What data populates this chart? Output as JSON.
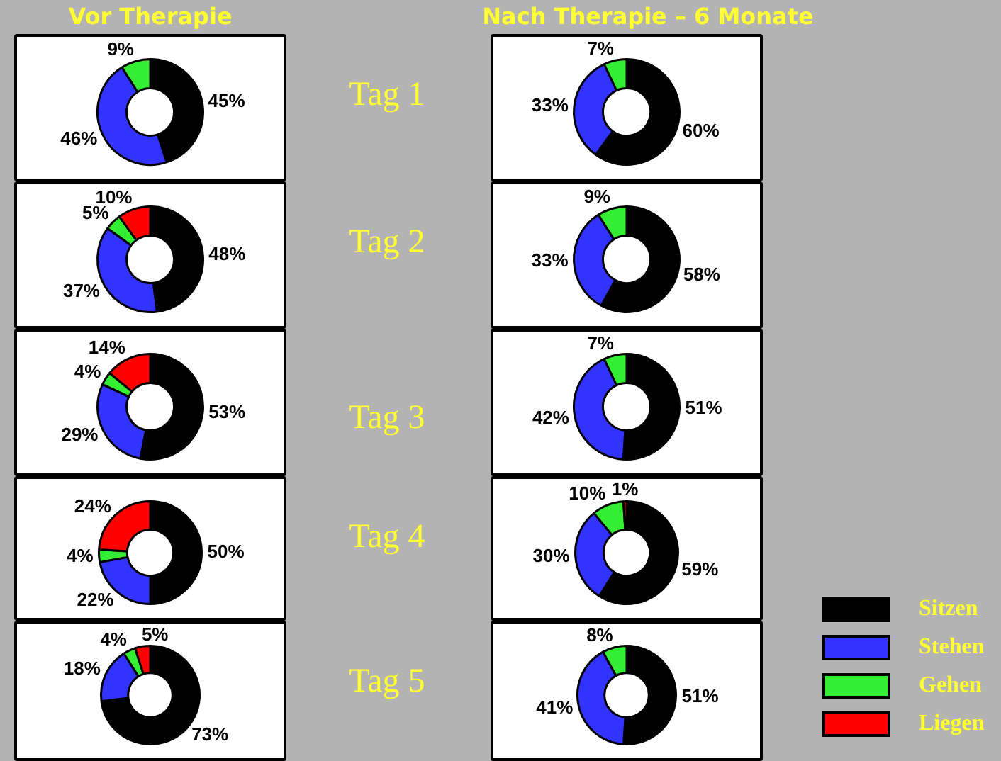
{
  "chart_data": [
    {
      "type": "other",
      "annotations": [
        "Vor Therapie",
        "Nach Therapie – 6 Monate",
        "Tag 1",
        "Tag 2",
        "Tag 3",
        "Tag 4",
        "Tag 5"
      ]
    },
    {
      "type": "donut",
      "categories": [
        null,
        null,
        null,
        null
      ],
      "values": [
        45,
        46,
        9,
        null
      ],
      "colors": [
        "#000000",
        "#3333ff",
        "#33ee33",
        "#ff0000"
      ],
      "value_labels": [
        "45%",
        "46%",
        "9%",
        null
      ]
    },
    {
      "type": "donut",
      "categories": [
        null,
        null,
        null,
        null
      ],
      "values": [
        60,
        33,
        7,
        null
      ],
      "colors": [
        "#000000",
        "#3333ff",
        "#33ee33",
        "#ff0000"
      ],
      "value_labels": [
        "60%",
        "33%",
        "7%",
        null
      ]
    },
    {
      "type": "donut",
      "categories": [
        null,
        null,
        null,
        null
      ],
      "values": [
        48,
        37,
        5,
        10
      ],
      "colors": [
        "#000000",
        "#3333ff",
        "#33ee33",
        "#ff0000"
      ],
      "value_labels": [
        "48%",
        "37%",
        "5%",
        "10%"
      ]
    },
    {
      "type": "donut",
      "categories": [
        null,
        null,
        null,
        null
      ],
      "values": [
        58,
        33,
        9,
        null
      ],
      "colors": [
        "#000000",
        "#3333ff",
        "#33ee33",
        "#ff0000"
      ],
      "value_labels": [
        "58%",
        "33%",
        "9%",
        null
      ]
    },
    {
      "type": "donut",
      "categories": [
        null,
        null,
        null,
        null
      ],
      "values": [
        53,
        29,
        4,
        14
      ],
      "colors": [
        "#000000",
        "#3333ff",
        "#33ee33",
        "#ff0000"
      ],
      "value_labels": [
        "53%",
        "29%",
        "4%",
        "14%"
      ]
    },
    {
      "type": "donut",
      "categories": [
        null,
        null,
        null,
        null
      ],
      "values": [
        51,
        42,
        7,
        null
      ],
      "colors": [
        "#000000",
        "#3333ff",
        "#33ee33",
        "#ff0000"
      ],
      "value_labels": [
        "51%",
        "42%",
        "7%",
        null
      ]
    },
    {
      "type": "donut",
      "categories": [
        null,
        null,
        null,
        null
      ],
      "values": [
        50,
        22,
        4,
        24
      ],
      "colors": [
        "#000000",
        "#3333ff",
        "#33ee33",
        "#ff0000"
      ],
      "value_labels": [
        "50%",
        "22%",
        "4%",
        "24%"
      ]
    },
    {
      "type": "donut",
      "categories": [
        null,
        null,
        null,
        null
      ],
      "values": [
        59,
        30,
        10,
        1
      ],
      "colors": [
        "#000000",
        "#3333ff",
        "#33ee33",
        "#ff0000"
      ],
      "value_labels": [
        "59%",
        "30%",
        "10%",
        "1%"
      ]
    },
    {
      "type": "donut",
      "categories": [
        null,
        null,
        null,
        null
      ],
      "values": [
        73,
        18,
        4,
        5
      ],
      "colors": [
        "#000000",
        "#3333ff",
        "#33ee33",
        "#ff0000"
      ],
      "value_labels": [
        "73%",
        "18%",
        "4%",
        "5%"
      ]
    },
    {
      "type": "donut",
      "categories": [
        "Sitzen",
        "Stehen",
        "Gehen",
        "Liegen"
      ],
      "values": [
        51,
        41,
        8,
        null
      ],
      "colors": [
        "#000000",
        "#3333ff",
        "#33ee33",
        "#ff0000"
      ],
      "value_labels": [
        "51%",
        "41%",
        "8%",
        null
      ],
      "legend": "right"
    }
  ]
}
